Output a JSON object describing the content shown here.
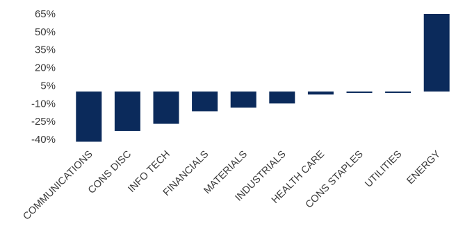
{
  "chart_data": {
    "type": "bar",
    "title": "",
    "xlabel": "",
    "ylabel": "",
    "categories": [
      "COMMUNICATIONS",
      "CONS DISC",
      "INFO TECH",
      "FINANCIALS",
      "MATERIALS",
      "INDUSTRIALS",
      "HEALTH CARE",
      "CONS STAPLES",
      "UTILITIES",
      "ENERGY"
    ],
    "values": [
      -42,
      -33,
      -27,
      -16.5,
      -13.5,
      -10,
      -2.5,
      -0.7,
      -0.7,
      65
    ],
    "ylim": [
      -40,
      65
    ],
    "yticks": [
      65,
      50,
      35,
      20,
      5,
      -10,
      -25,
      -40
    ],
    "ytick_labels": [
      "65%",
      "50%",
      "35%",
      "20%",
      "5%",
      "-10%",
      "-25%",
      "-40%"
    ],
    "grid": false,
    "legend": "none",
    "bar_color": "#0b2a5b"
  }
}
